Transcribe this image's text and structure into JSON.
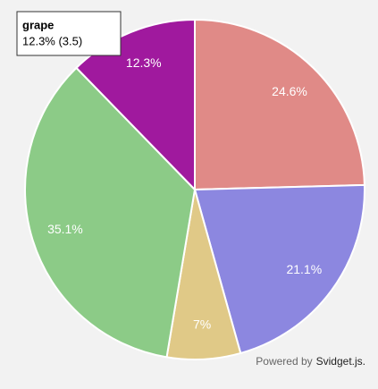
{
  "chart_data": {
    "type": "pie",
    "categories": [
      null,
      null,
      null,
      null,
      "grape"
    ],
    "values": [
      24.6,
      21.1,
      7,
      35.1,
      12.3
    ],
    "value_labels": [
      "24.6%",
      "21.1%",
      "7%",
      "35.1%",
      "12.3%"
    ],
    "colors": [
      "#e08a87",
      "#8c87e0",
      "#e0c987",
      "#8ccb87",
      "#a0199e"
    ],
    "tooltip": {
      "title": "grape",
      "text": "12.3% (3.5)"
    },
    "credit": {
      "prefix": "Powered by",
      "link": "Svidget.js."
    }
  }
}
